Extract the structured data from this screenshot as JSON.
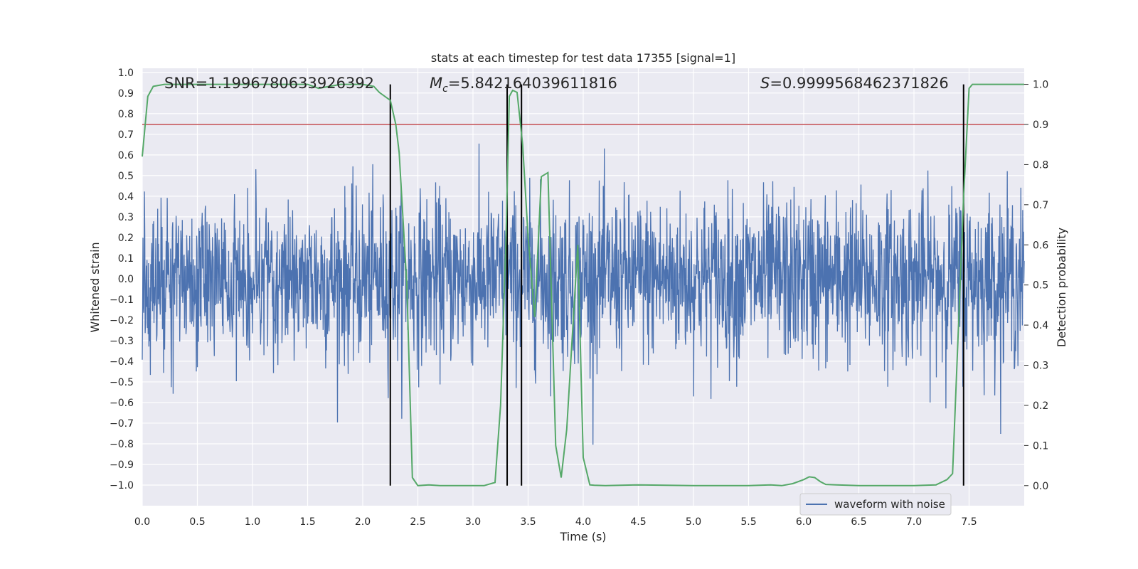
{
  "chart_data": {
    "type": "line",
    "title": "stats at each timestep for test data 17355 [signal=1]",
    "xlabel": "Time (s)",
    "ylabel": "Whitened strain",
    "y2label": "Detection probability",
    "xlim": [
      0,
      8
    ],
    "ylim": [
      -1.1,
      1.02
    ],
    "y2lim": [
      -0.05,
      1.04
    ],
    "xticks": [
      0.0,
      0.5,
      1.0,
      1.5,
      2.0,
      2.5,
      3.0,
      3.5,
      4.0,
      4.5,
      5.0,
      5.5,
      6.0,
      6.5,
      7.0,
      7.5
    ],
    "yticks": [
      -1.0,
      -0.9,
      -0.8,
      -0.7,
      -0.6,
      -0.5,
      -0.4,
      -0.3,
      -0.2,
      -0.1,
      0.0,
      0.1,
      0.2,
      0.3,
      0.4,
      0.5,
      0.6,
      0.7,
      0.8,
      0.9,
      1.0
    ],
    "y2ticks": [
      0.0,
      0.1,
      0.2,
      0.3,
      0.4,
      0.5,
      0.6,
      0.7,
      0.8,
      0.9,
      1.0
    ],
    "grid": true,
    "legend": {
      "position": "lower-right",
      "entries": [
        "waveform with noise"
      ]
    },
    "annotations": {
      "snr": "SNR=1.1996780633926392",
      "mc_symbol": "M",
      "mc_sub": "c",
      "mc_value": "=5.842164039611816",
      "s_symbol": "S",
      "s_value": "=0.9999568462371826"
    },
    "threshold_y2": 0.9,
    "vertical_lines_x": [
      2.25,
      3.31,
      3.44,
      7.45
    ],
    "waveform": {
      "name": "waveform with noise",
      "color": "#4c72b0",
      "noise_sigma": 0.2,
      "duration_s": 8
    },
    "detection_probability": {
      "color": "#55a868",
      "x": [
        0.0,
        0.05,
        0.1,
        0.2,
        0.5,
        1.0,
        1.5,
        1.6,
        1.7,
        1.8,
        2.0,
        2.1,
        2.15,
        2.25,
        2.3,
        2.33,
        2.4,
        2.45,
        2.5,
        2.6,
        2.7,
        2.8,
        3.0,
        3.1,
        3.2,
        3.25,
        3.3,
        3.33,
        3.36,
        3.4,
        3.45,
        3.5,
        3.56,
        3.62,
        3.68,
        3.75,
        3.8,
        3.85,
        3.95,
        4.0,
        4.06,
        4.1,
        4.2,
        4.5,
        5.0,
        5.5,
        5.7,
        5.8,
        5.9,
        6.0,
        6.05,
        6.1,
        6.15,
        6.2,
        6.3,
        6.5,
        7.0,
        7.2,
        7.3,
        7.35,
        7.4,
        7.45,
        7.5,
        7.53,
        7.6,
        7.8,
        8.0
      ],
      "y": [
        0.82,
        0.97,
        0.995,
        1.0,
        1.0,
        1.0,
        1.0,
        0.99,
        0.995,
        1.0,
        1.0,
        0.995,
        0.98,
        0.96,
        0.9,
        0.83,
        0.5,
        0.02,
        0.0,
        0.002,
        0.0,
        0.0,
        0.0,
        0.0,
        0.008,
        0.2,
        0.62,
        0.97,
        0.985,
        0.98,
        0.85,
        0.62,
        0.42,
        0.77,
        0.78,
        0.1,
        0.02,
        0.14,
        0.6,
        0.07,
        0.002,
        0.001,
        0.0,
        0.002,
        0.0,
        0.0,
        0.002,
        0.0,
        0.005,
        0.015,
        0.022,
        0.02,
        0.01,
        0.003,
        0.002,
        0.0,
        0.0,
        0.002,
        0.015,
        0.03,
        0.37,
        0.72,
        0.99,
        1.0,
        1.0,
        1.0,
        1.0
      ]
    }
  }
}
